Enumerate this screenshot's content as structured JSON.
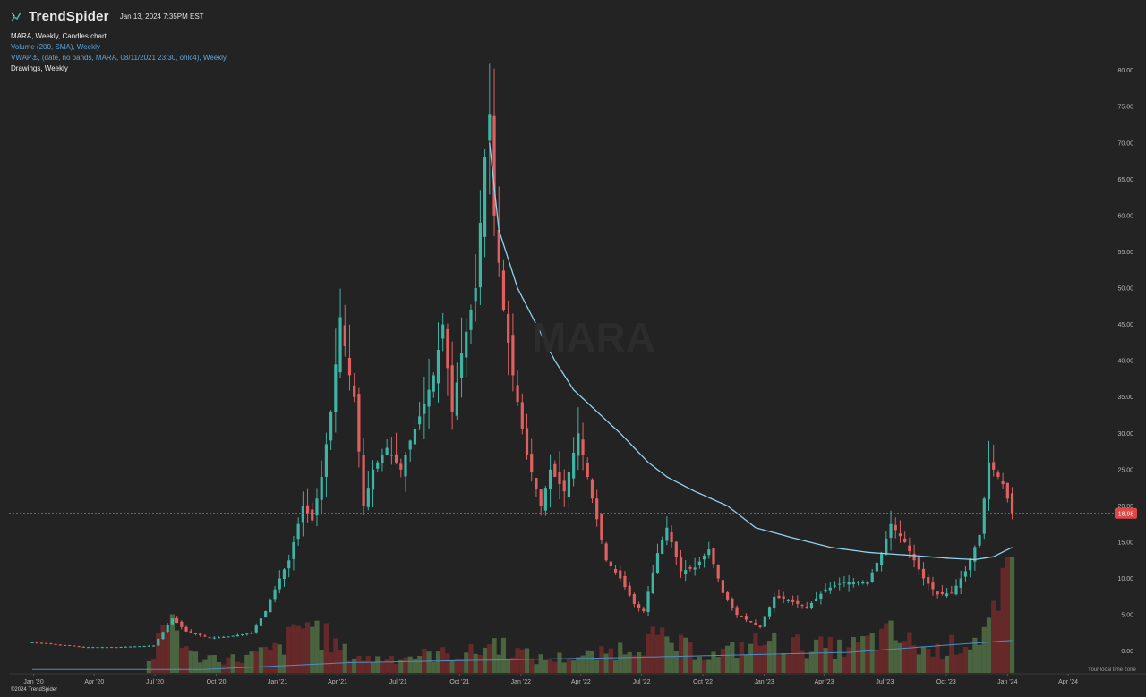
{
  "header": {
    "brand": "TrendSpider",
    "timestamp": "Jan 13, 2024 7:35PM EST",
    "chart_title": "MARA, Weekly, Candles chart",
    "indicator_volume": "Volume (200, SMA), Weekly",
    "indicator_vwap": "VWAP⚓, (date, no bands, MARA, 08/11/2021 23:30, ohlc4), Weekly",
    "drawings": "Drawings, Weekly"
  },
  "footer": {
    "copyright": "©2024 TrendSpider",
    "timezone": "Your local time zone"
  },
  "watermark": "MARA",
  "colors": {
    "background": "#232323",
    "up": "#3fb3a4",
    "down": "#e06060",
    "vwap": "#8fd3f0",
    "volume_up": "#4f6b44",
    "volume_down": "#6e2a2a",
    "price_tag": "#e04646"
  },
  "chart_data": {
    "type": "candlestick",
    "ticker": "MARA",
    "interval": "Weekly",
    "last_price": 18.98,
    "last_price_label": "18.98",
    "y_range": [
      -3,
      86
    ],
    "y_ticks": [
      "80.00",
      "75.00",
      "70.00",
      "65.00",
      "60.00",
      "55.00",
      "50.00",
      "45.00",
      "40.00",
      "35.00",
      "30.00",
      "25.00",
      "20.00",
      "15.00",
      "10.00",
      "5.00",
      "0.00"
    ],
    "x_ticks": [
      "Jan '20",
      "Apr '20",
      "Jul '20",
      "Oct '20",
      "Jan '21",
      "Apr '21",
      "Jul '21",
      "Oct '21",
      "Jan '22",
      "Apr '22",
      "Jul '22",
      "Oct '22",
      "Jan '23",
      "Apr '23",
      "Jul '23",
      "Oct '23",
      "Jan '24",
      "Apr '24"
    ],
    "x_range": [
      "2019-11-25",
      "2024-06-03"
    ],
    "price_series": [
      [
        "2019-12-30",
        1.2
      ],
      [
        "2020-02-10",
        0.85
      ],
      [
        "2020-03-16",
        0.55
      ],
      [
        "2020-05-04",
        0.55
      ],
      [
        "2020-06-29",
        0.75
      ],
      [
        "2020-07-27",
        4.5
      ],
      [
        "2020-08-17",
        2.7
      ],
      [
        "2020-09-21",
        1.8
      ],
      [
        "2020-10-19",
        2.0
      ],
      [
        "2020-11-23",
        2.5
      ],
      [
        "2020-12-14",
        5.5
      ],
      [
        "2021-01-04",
        10.0
      ],
      [
        "2021-01-18",
        12.5
      ],
      [
        "2021-02-08",
        20.0
      ],
      [
        "2021-02-22",
        18.0
      ],
      [
        "2021-03-08",
        24.0
      ],
      [
        "2021-03-22",
        33.0
      ],
      [
        "2021-04-05",
        46.0
      ],
      [
        "2021-04-19",
        38.0
      ],
      [
        "2021-04-26",
        35.0
      ],
      [
        "2021-05-10",
        20.0
      ],
      [
        "2021-05-24",
        25.0
      ],
      [
        "2021-06-14",
        28.0
      ],
      [
        "2021-07-05",
        25.0
      ],
      [
        "2021-07-19",
        29.0
      ],
      [
        "2021-08-09",
        34.0
      ],
      [
        "2021-08-23",
        38.0
      ],
      [
        "2021-09-06",
        45.0
      ],
      [
        "2021-09-20",
        33.0
      ],
      [
        "2021-10-04",
        41.0
      ],
      [
        "2021-10-25",
        50.0
      ],
      [
        "2021-11-08",
        68.0
      ],
      [
        "2021-11-15",
        74.0
      ],
      [
        "2021-11-22",
        60.0
      ],
      [
        "2021-12-06",
        47.0
      ],
      [
        "2021-12-20",
        38.0
      ],
      [
        "2022-01-10",
        27.0
      ],
      [
        "2022-01-31",
        20.0
      ],
      [
        "2022-02-14",
        25.0
      ],
      [
        "2022-03-07",
        22.0
      ],
      [
        "2022-03-28",
        30.0
      ],
      [
        "2022-04-18",
        21.0
      ],
      [
        "2022-05-09",
        12.5
      ],
      [
        "2022-05-30",
        10.0
      ],
      [
        "2022-06-20",
        6.5
      ],
      [
        "2022-07-04",
        5.5
      ],
      [
        "2022-07-25",
        13.5
      ],
      [
        "2022-08-08",
        17.0
      ],
      [
        "2022-08-29",
        11.0
      ],
      [
        "2022-09-19",
        11.5
      ],
      [
        "2022-10-10",
        14.0
      ],
      [
        "2022-10-31",
        8.0
      ],
      [
        "2022-11-21",
        5.0
      ],
      [
        "2022-12-26",
        3.3
      ],
      [
        "2023-01-16",
        7.5
      ],
      [
        "2023-02-06",
        7.0
      ],
      [
        "2023-03-06",
        6.0
      ],
      [
        "2023-04-03",
        8.5
      ],
      [
        "2023-05-01",
        9.5
      ],
      [
        "2023-06-05",
        9.5
      ],
      [
        "2023-06-26",
        13.5
      ],
      [
        "2023-07-10",
        17.5
      ],
      [
        "2023-07-31",
        15.0
      ],
      [
        "2023-08-28",
        10.0
      ],
      [
        "2023-09-18",
        7.8
      ],
      [
        "2023-10-09",
        8.0
      ],
      [
        "2023-10-30",
        11.0
      ],
      [
        "2023-11-20",
        16.0
      ],
      [
        "2023-12-04",
        26.0
      ],
      [
        "2023-12-25",
        23.0
      ],
      [
        "2024-01-08",
        18.98
      ]
    ],
    "vwap_series": [
      [
        "2021-11-15",
        70.0
      ],
      [
        "2021-11-29",
        58.0
      ],
      [
        "2021-12-27",
        50.0
      ],
      [
        "2022-01-24",
        45.0
      ],
      [
        "2022-02-21",
        40.0
      ],
      [
        "2022-03-21",
        36.0
      ],
      [
        "2022-04-25",
        33.0
      ],
      [
        "2022-05-30",
        30.0
      ],
      [
        "2022-07-11",
        26.0
      ],
      [
        "2022-08-08",
        24.0
      ],
      [
        "2022-09-19",
        22.0
      ],
      [
        "2022-11-07",
        20.0
      ],
      [
        "2022-12-19",
        17.0
      ],
      [
        "2023-02-13",
        15.6
      ],
      [
        "2023-04-10",
        14.3
      ],
      [
        "2023-06-05",
        13.6
      ],
      [
        "2023-08-07",
        13.2
      ],
      [
        "2023-10-02",
        12.8
      ],
      [
        "2023-11-13",
        12.6
      ],
      [
        "2023-12-11",
        13.0
      ],
      [
        "2024-01-08",
        14.3
      ]
    ],
    "volume_series": [
      [
        "2020-06-22",
        0.3
      ],
      [
        "2020-07-27",
        1.6
      ],
      [
        "2020-08-24",
        0.5
      ],
      [
        "2020-11-02",
        0.4
      ],
      [
        "2021-01-04",
        0.7
      ],
      [
        "2021-02-15",
        1.5
      ],
      [
        "2021-03-22",
        0.9
      ],
      [
        "2021-04-12",
        0.6
      ],
      [
        "2021-05-17",
        0.4
      ],
      [
        "2021-07-26",
        0.5
      ],
      [
        "2021-10-25",
        0.6
      ],
      [
        "2021-11-22",
        0.9
      ],
      [
        "2022-01-24",
        0.4
      ],
      [
        "2022-04-25",
        0.5
      ],
      [
        "2022-07-18",
        1.0
      ],
      [
        "2022-10-17",
        0.5
      ],
      [
        "2022-12-26",
        0.9
      ],
      [
        "2023-02-20",
        0.8
      ],
      [
        "2023-05-01",
        0.7
      ],
      [
        "2023-07-10",
        1.1
      ],
      [
        "2023-09-11",
        0.6
      ],
      [
        "2023-11-13",
        1.0
      ],
      [
        "2023-12-18",
        1.6
      ],
      [
        "2024-01-08",
        3.2
      ]
    ],
    "volume_sma_series": [
      [
        "2019-12-30",
        0.1
      ],
      [
        "2020-09-14",
        0.1
      ],
      [
        "2021-04-19",
        0.3
      ],
      [
        "2022-06-13",
        0.45
      ],
      [
        "2023-05-08",
        0.6
      ],
      [
        "2024-01-08",
        0.95
      ]
    ]
  }
}
